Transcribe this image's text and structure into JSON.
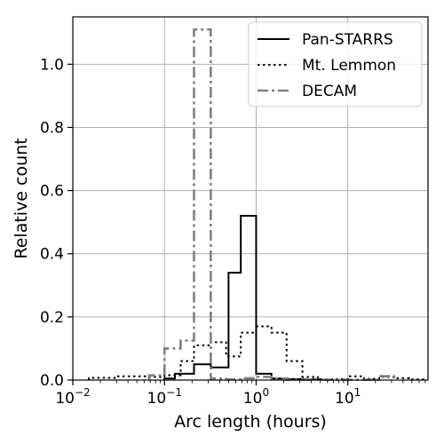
{
  "chart_data": {
    "type": "line",
    "drawstyle": "steps",
    "xscale": "log",
    "xlabel": "Arc length (hours)",
    "ylabel": "Relative count",
    "xlim": [
      0.01,
      75
    ],
    "ylim": [
      0,
      1.15
    ],
    "grid": true,
    "legend_position": "top-right",
    "x_ticks": [
      {
        "value": 0.01,
        "base": "10",
        "exp": "−2"
      },
      {
        "value": 0.1,
        "base": "10",
        "exp": "−1"
      },
      {
        "value": 1,
        "base": "10",
        "exp": "0"
      },
      {
        "value": 10,
        "base": "10",
        "exp": "1"
      }
    ],
    "y_ticks": [
      "0.0",
      "0.2",
      "0.4",
      "0.6",
      "0.8",
      "1.0"
    ],
    "y_tick_values": [
      0,
      0.2,
      0.4,
      0.6,
      0.8,
      1.0
    ],
    "series": [
      {
        "name": "Pan-STARRS",
        "color": "#000000",
        "linestyle": "solid",
        "edges": [
          0.1,
          0.13,
          0.21,
          0.32,
          0.5,
          0.68,
          1.0,
          1.47,
          2.2,
          3.3,
          5.0
        ],
        "values": [
          0.005,
          0.02,
          0.05,
          0.04,
          0.34,
          0.52,
          0.02,
          0.005,
          0.003,
          0.002
        ]
      },
      {
        "name": "Mt. Lemmon",
        "color": "#000000",
        "linestyle": "dotted",
        "edges": [
          0.015,
          0.03,
          0.068,
          0.1,
          0.15,
          0.21,
          0.32,
          0.47,
          0.68,
          1.0,
          1.47,
          2.15,
          3.2,
          4.7,
          6.8,
          10,
          15,
          22,
          32,
          47,
          70
        ],
        "values": [
          0.007,
          0.012,
          0.01,
          0.015,
          0.06,
          0.11,
          0.12,
          0.075,
          0.15,
          0.17,
          0.15,
          0.06,
          0.01,
          0.002,
          0.003,
          0.012,
          0.004,
          0.01,
          0.006,
          0.002
        ]
      },
      {
        "name": "DECAM",
        "color": "#808080",
        "linestyle": "dashdot",
        "edges": [
          0.068,
          0.1,
          0.15,
          0.21,
          0.32,
          0.47,
          0.68,
          1.0,
          1.47,
          2.15,
          22,
          32
        ],
        "values": [
          0.015,
          0.1,
          0.125,
          1.11,
          0.005,
          0.002,
          0.006,
          0.01,
          0.004,
          0.001,
          0.012
        ]
      }
    ]
  }
}
